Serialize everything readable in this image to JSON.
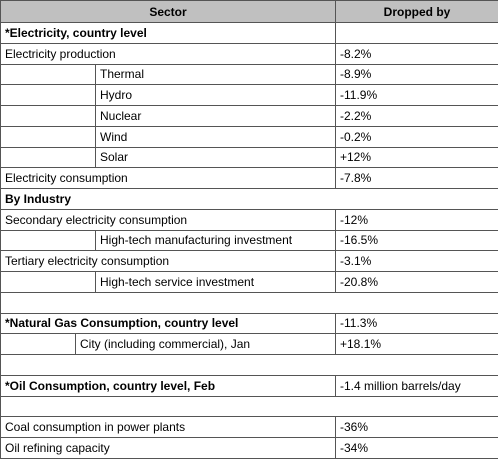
{
  "table": {
    "header": [
      "Sector",
      "Dropped by"
    ],
    "rows": [
      [
        "*Electricity, country level"
      ],
      [
        "Electricity production",
        "-8.2%"
      ],
      [
        "Thermal",
        "-8.9%"
      ],
      [
        "Hydro",
        "-11.9%"
      ],
      [
        "Nuclear",
        "-2.2%"
      ],
      [
        "Wind",
        "-0.2%"
      ],
      [
        "Solar",
        "+12%"
      ],
      [
        "Electricity consumption",
        "-7.8%"
      ],
      [
        "By Industry"
      ],
      [
        "Secondary electricity consumption",
        "-12%"
      ],
      [
        "High-tech manufacturing investment",
        "-16.5%"
      ],
      [
        "Tertiary electricity consumption",
        "-3.1%"
      ],
      [
        "High-tech service investment",
        "-20.8%"
      ],
      [
        "*Natural Gas Consumption, country level",
        "-11.3%"
      ],
      [
        "City (including commercial), Jan",
        "+18.1%"
      ],
      [
        "*Oil Consumption, country level, Feb",
        "-1.4 million barrels/day"
      ],
      [
        "Coal consumption in power plants",
        "-36%"
      ],
      [
        "Oil refining capacity",
        "-34%"
      ]
    ]
  }
}
